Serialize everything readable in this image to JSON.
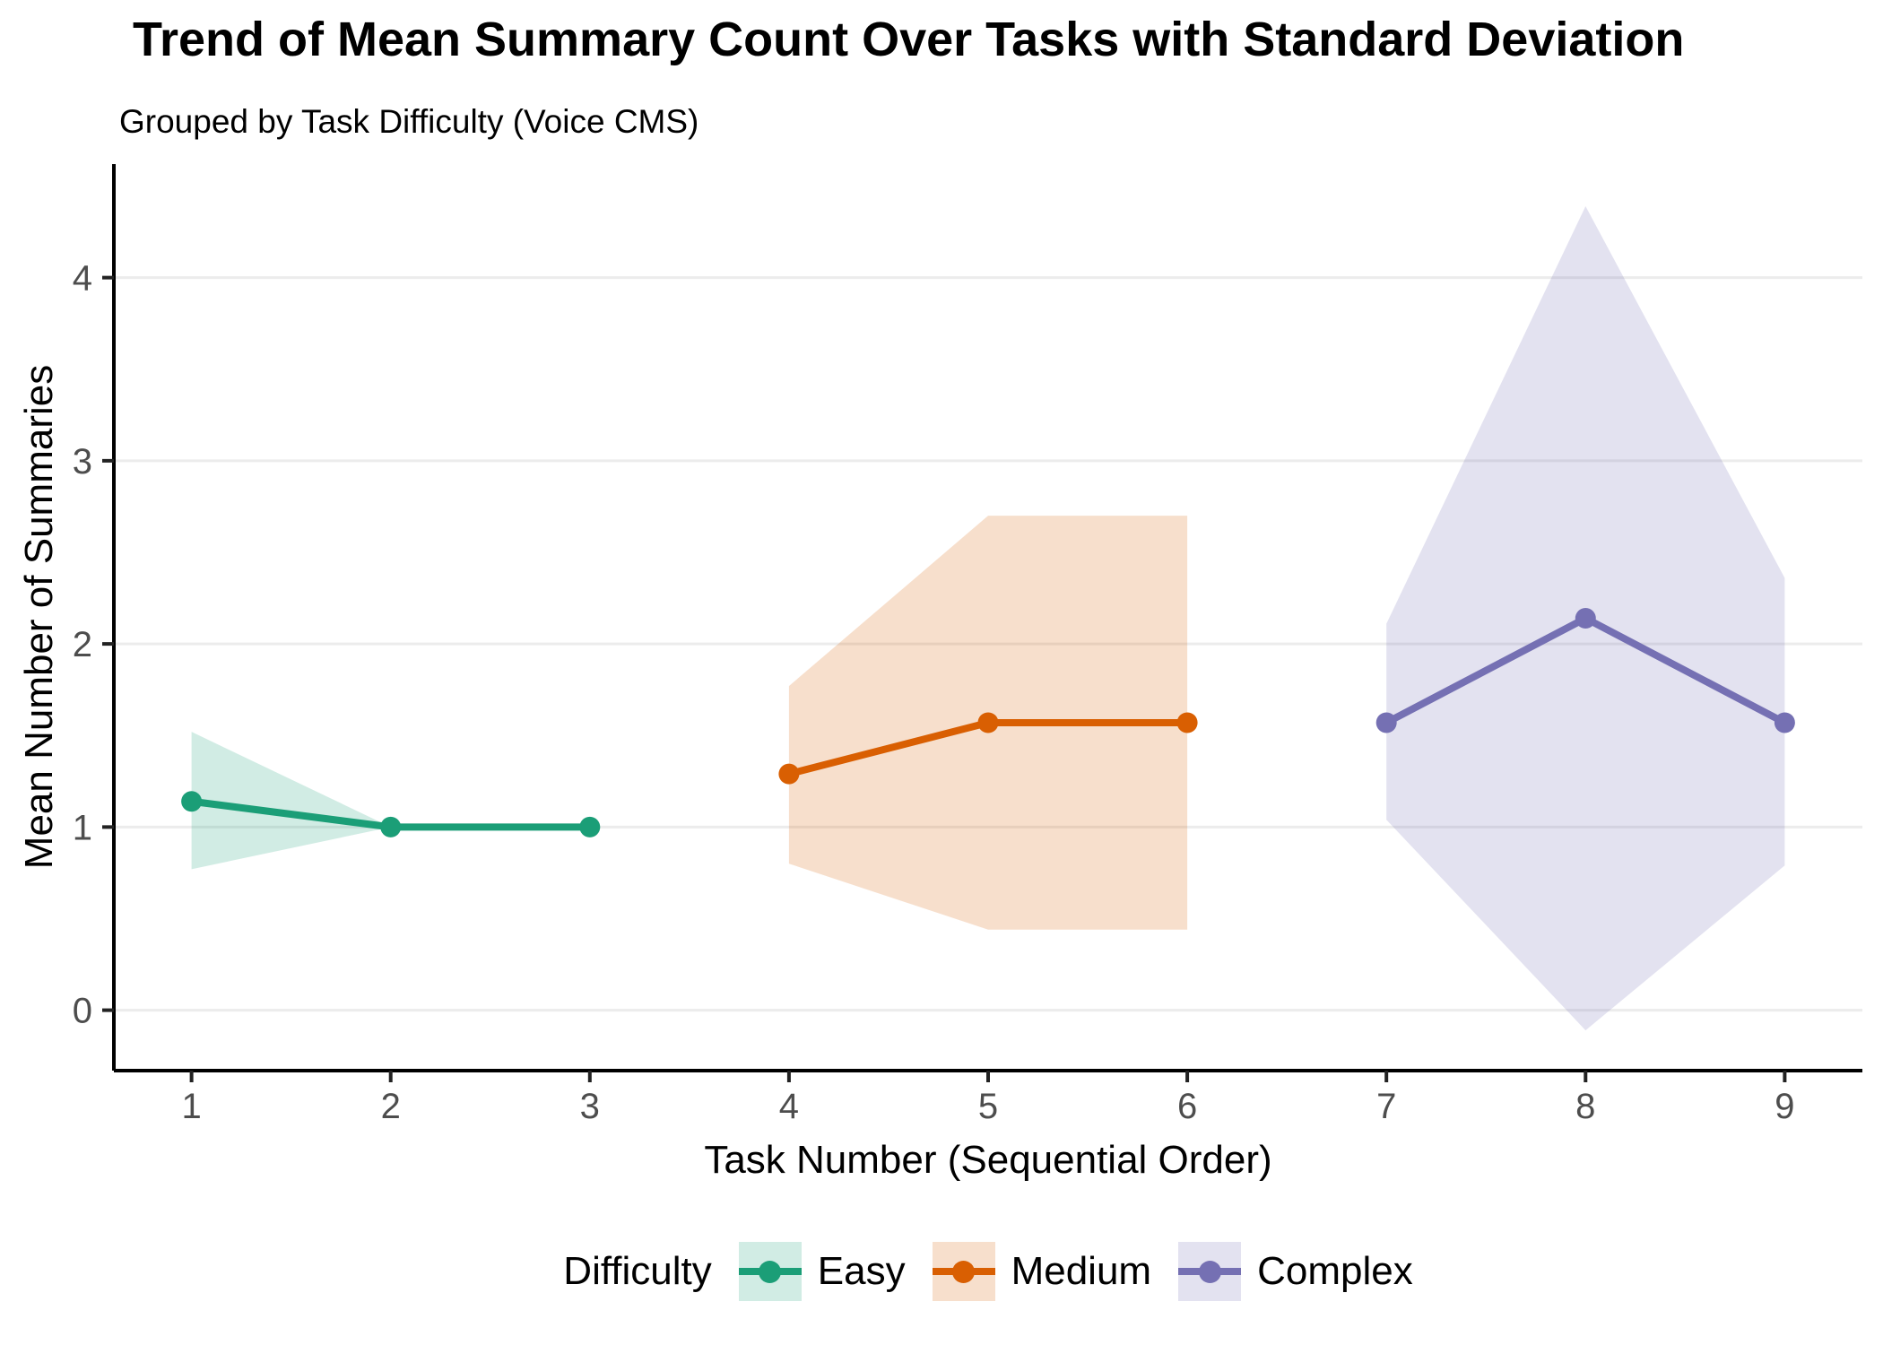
{
  "figure": {
    "background": "#FFFFFF"
  },
  "chart_data": {
    "type": "line",
    "title": "Trend of Mean Summary Count Over Tasks with Standard Deviation",
    "subtitle": "Grouped by Task Difficulty (Voice CMS)",
    "xlabel": "Task Number (Sequential Order)",
    "ylabel": "Mean Number of Summaries",
    "legend_title": "Difficulty",
    "legend_position": "bottom",
    "grid": "horizontal-major-only",
    "ribbon_meaning": "mean ± 1 standard deviation",
    "x_ticks": [
      1,
      2,
      3,
      4,
      5,
      6,
      7,
      8,
      9
    ],
    "y_ticks": [
      0,
      1,
      2,
      3,
      4
    ],
    "xlim": [
      0.61,
      9.39
    ],
    "ylim": [
      -0.33,
      4.62
    ],
    "colors": {
      "axis_line": "#000000",
      "tick_mark": "#222222",
      "tick_text": "#4D4D4D",
      "gridline": "#ECECEC"
    },
    "series": [
      {
        "name": "Easy",
        "color": "#1B9E77",
        "ribbon_color": "rgba(27,158,119,0.20)",
        "x": [
          1,
          2,
          3
        ],
        "mean": [
          1.14,
          1.0,
          1.0
        ],
        "sd": [
          0.38,
          0.0,
          0.0
        ],
        "upper": [
          1.52,
          1.0,
          1.0
        ],
        "lower": [
          0.77,
          1.0,
          1.0
        ]
      },
      {
        "name": "Medium",
        "color": "#D95F02",
        "ribbon_color": "rgba(217,95,2,0.20)",
        "x": [
          4,
          5,
          6
        ],
        "mean": [
          1.29,
          1.57,
          1.57
        ],
        "sd": [
          0.49,
          1.13,
          1.13
        ],
        "upper": [
          1.77,
          2.7,
          2.7
        ],
        "lower": [
          0.8,
          0.44,
          0.44
        ]
      },
      {
        "name": "Complex",
        "color": "#7570B3",
        "ribbon_color": "rgba(117,112,179,0.20)",
        "x": [
          7,
          8,
          9
        ],
        "mean": [
          1.57,
          2.14,
          1.57
        ],
        "sd": [
          0.53,
          2.25,
          0.79
        ],
        "upper": [
          2.11,
          4.39,
          2.36
        ],
        "lower": [
          1.04,
          -0.11,
          0.79
        ]
      }
    ]
  }
}
